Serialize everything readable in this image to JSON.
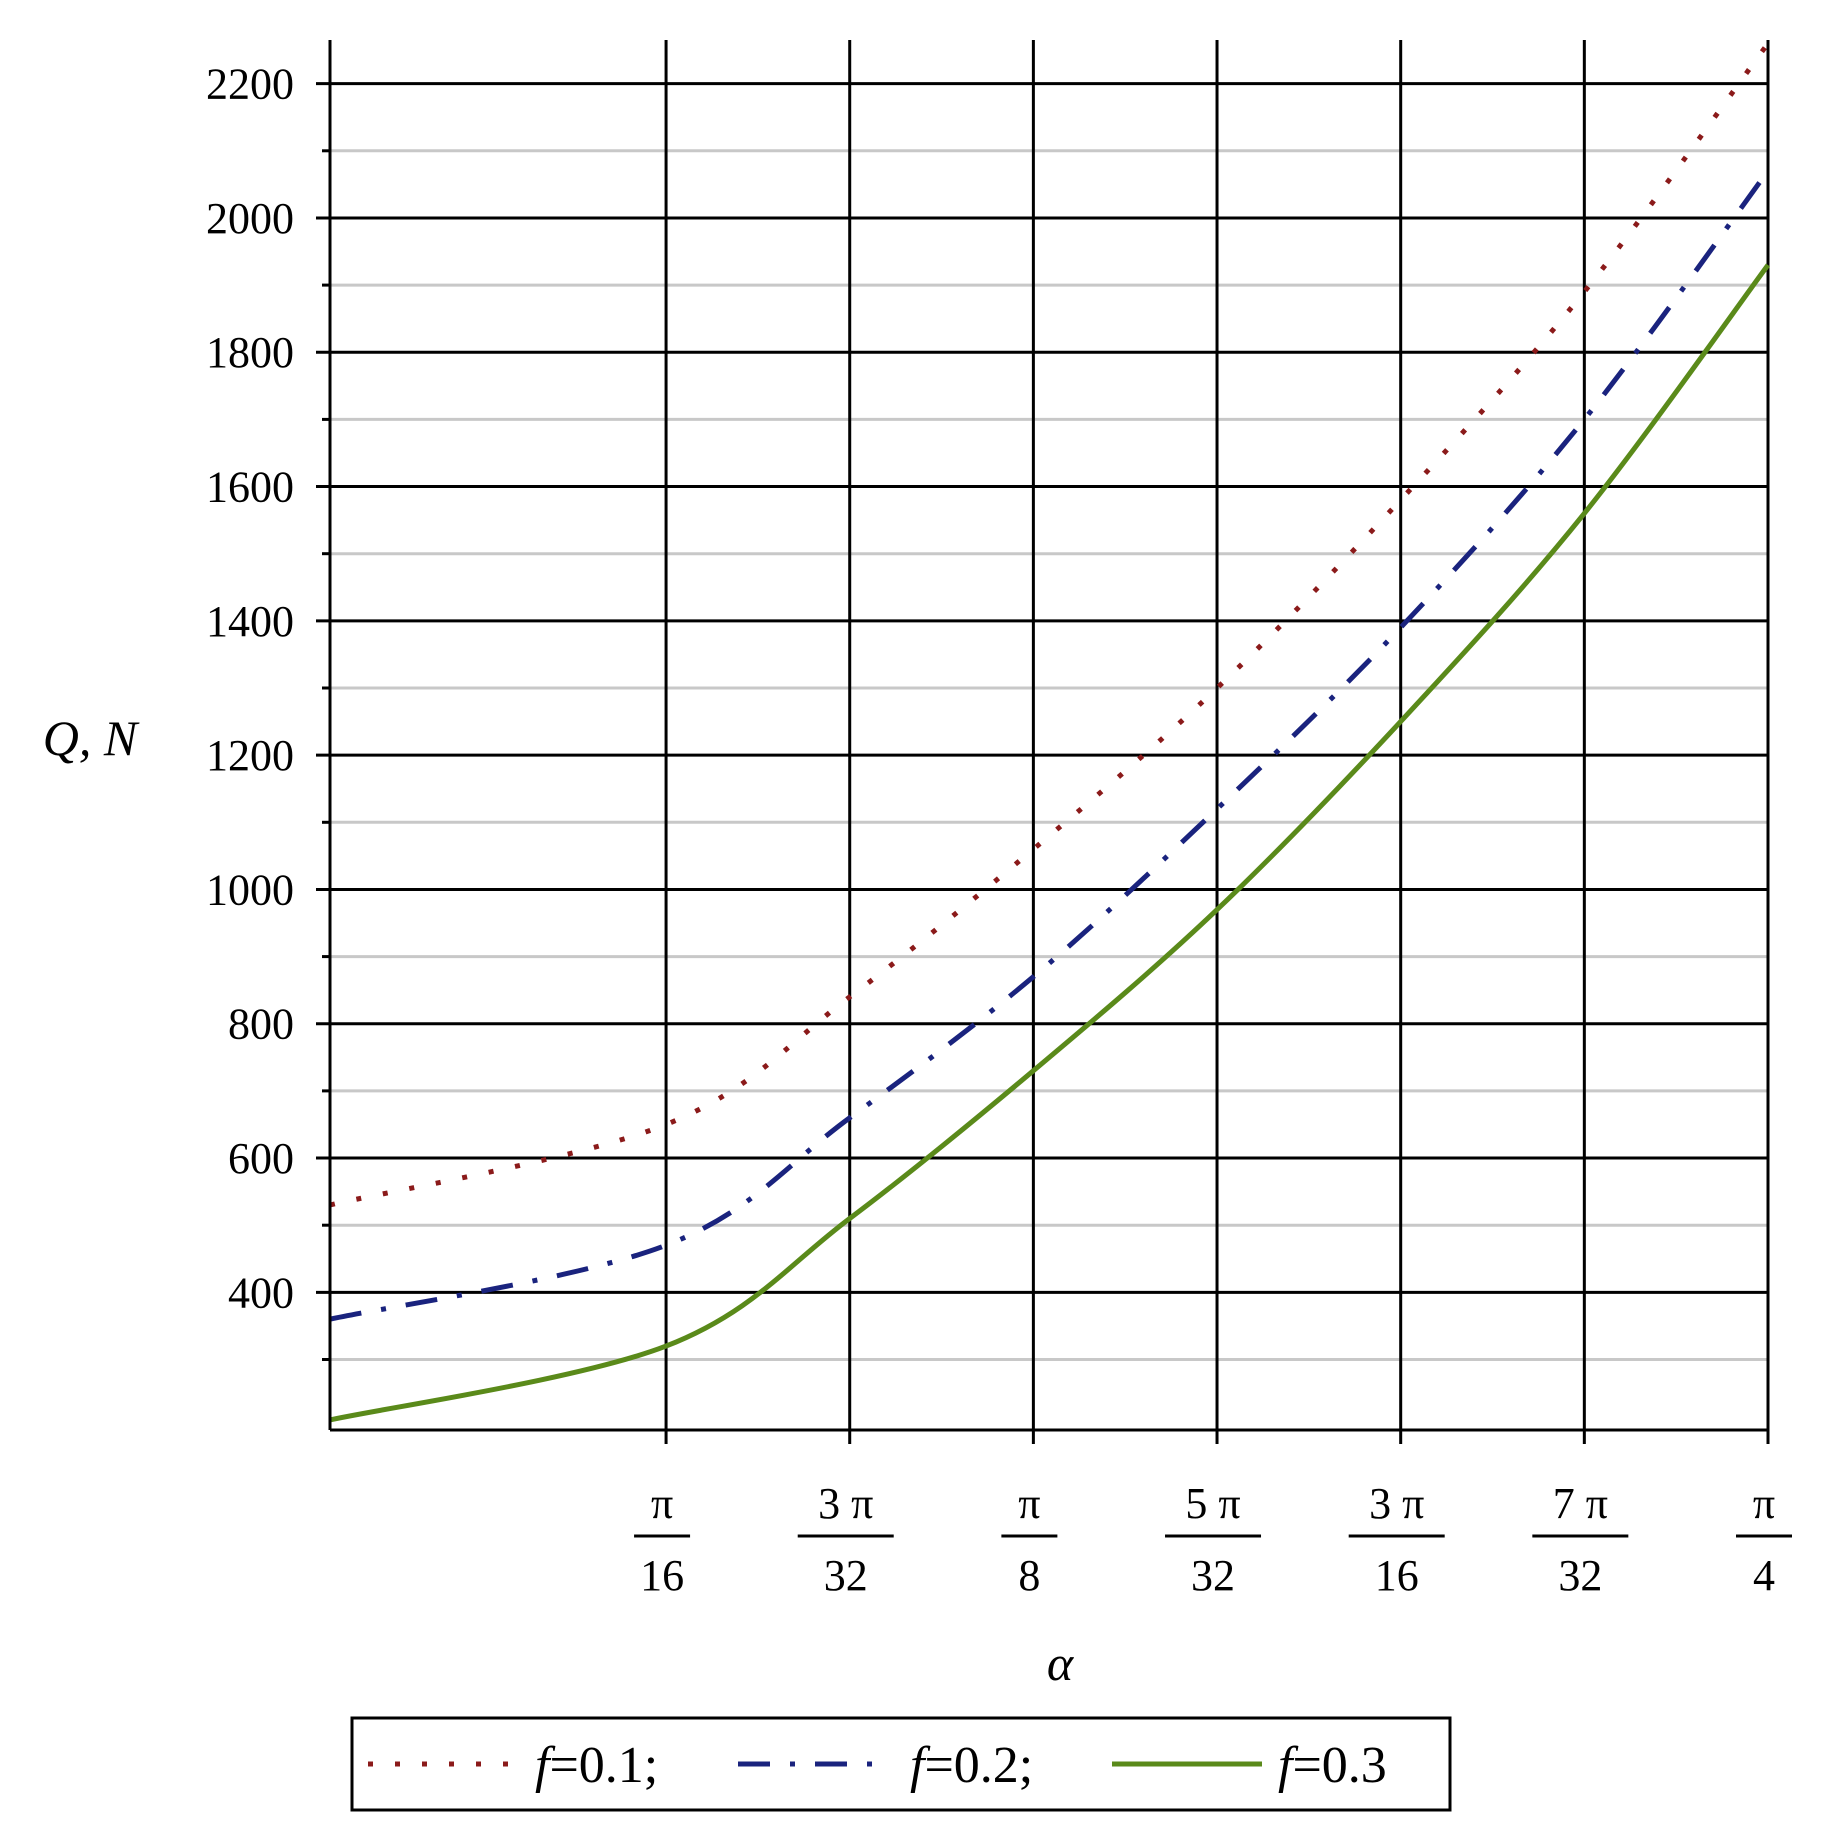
{
  "chart_data": {
    "type": "line",
    "title": "",
    "xlabel": "α",
    "ylabel": "Q, N",
    "xlim": [
      0.0167,
      0.7854
    ],
    "ylim": [
      195,
      2265
    ],
    "grid": true,
    "legend_placement": "bottom",
    "x_ticks": [
      {
        "value": 0.19635,
        "num": "π",
        "den": "16"
      },
      {
        "value": 0.29452,
        "num": "3 π",
        "den": "32"
      },
      {
        "value": 0.3927,
        "num": "π",
        "den": "8"
      },
      {
        "value": 0.49087,
        "num": "5 π",
        "den": "32"
      },
      {
        "value": 0.58905,
        "num": "3 π",
        "den": "16"
      },
      {
        "value": 0.68722,
        "num": "7 π",
        "den": "32"
      },
      {
        "value": 0.7854,
        "num": "π",
        "den": "4"
      }
    ],
    "y_ticks": [
      400,
      600,
      800,
      1000,
      1200,
      1400,
      1600,
      1800,
      2000,
      2200
    ],
    "y_tick_labels": [
      "400",
      "600",
      "800",
      "1000",
      "1200",
      "1400",
      "1600",
      "1800",
      "2000",
      "2200"
    ],
    "y_minor_ticks": [
      300,
      500,
      700,
      900,
      1100,
      1300,
      1500,
      1700,
      1900,
      2100
    ],
    "series": [
      {
        "name": "f=0.1;",
        "legend_prefix": "f",
        "legend_suffix": "=0.1;",
        "color": "#8b1a1a",
        "style": "dotted",
        "x": [
          0.0167,
          0.1963,
          0.2945,
          0.3927,
          0.4909,
          0.589,
          0.6872,
          0.7854
        ],
        "y": [
          530,
          650,
          840,
          1060,
          1300,
          1580,
          1890,
          2260
        ]
      },
      {
        "name": "f=0.2;",
        "legend_prefix": "f",
        "legend_suffix": "=0.2;",
        "color": "#1a237e",
        "style": "dashdot",
        "x": [
          0.0167,
          0.1963,
          0.2945,
          0.3927,
          0.4909,
          0.589,
          0.6872,
          0.7854
        ],
        "y": [
          360,
          470,
          660,
          870,
          1120,
          1390,
          1700,
          2070
        ]
      },
      {
        "name": "f=0.3",
        "legend_prefix": "f",
        "legend_suffix": "=0.3",
        "color": "#5a8a1a",
        "style": "solid",
        "x": [
          0.0167,
          0.1963,
          0.2945,
          0.3927,
          0.4909,
          0.589,
          0.6872,
          0.7854
        ],
        "y": [
          210,
          320,
          510,
          730,
          970,
          1250,
          1560,
          1930
        ]
      }
    ]
  }
}
